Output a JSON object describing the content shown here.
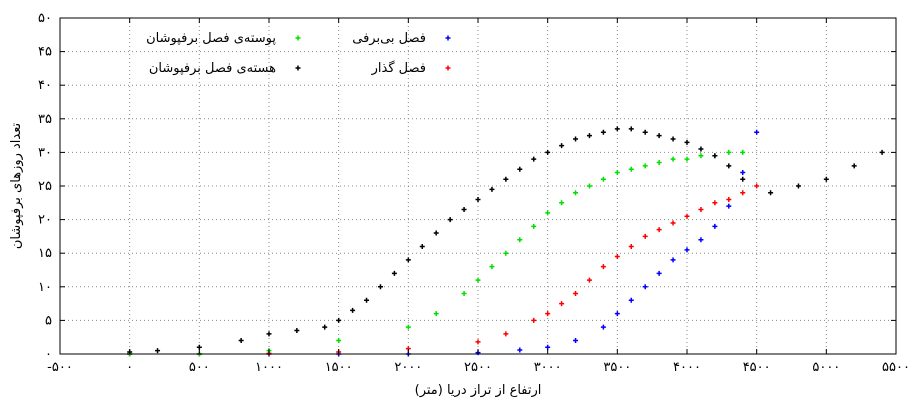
{
  "chart_data": {
    "type": "scatter",
    "title": "",
    "xlabel": "ارتفاع از تراز دریا (متر)",
    "ylabel": "تعداد روزهای برفپوشان",
    "xlim": [
      -500,
      5500
    ],
    "ylim": [
      0,
      50
    ],
    "x_ticks": [
      {
        "value": -500,
        "label": "-۵۰۰"
      },
      {
        "value": 0,
        "label": "۰"
      },
      {
        "value": 500,
        "label": "۵۰۰"
      },
      {
        "value": 1000,
        "label": "۱۰۰۰"
      },
      {
        "value": 1500,
        "label": "۱۵۰۰"
      },
      {
        "value": 2000,
        "label": "۲۰۰۰"
      },
      {
        "value": 2500,
        "label": "۲۵۰۰"
      },
      {
        "value": 3000,
        "label": "۳۰۰۰"
      },
      {
        "value": 3500,
        "label": "۳۵۰۰"
      },
      {
        "value": 4000,
        "label": "۴۰۰۰"
      },
      {
        "value": 4500,
        "label": "۴۵۰۰"
      },
      {
        "value": 5000,
        "label": "۵۰۰۰"
      },
      {
        "value": 5500,
        "label": "۵۵۰۰"
      }
    ],
    "y_ticks": [
      {
        "value": 0,
        "label": "۰"
      },
      {
        "value": 5,
        "label": "۵"
      },
      {
        "value": 10,
        "label": "۱۰"
      },
      {
        "value": 15,
        "label": "۱۵"
      },
      {
        "value": 20,
        "label": "۲۰"
      },
      {
        "value": 25,
        "label": "۲۵"
      },
      {
        "value": 30,
        "label": "۳۰"
      },
      {
        "value": 35,
        "label": "۳۵"
      },
      {
        "value": 40,
        "label": "۴۰"
      },
      {
        "value": 45,
        "label": "۴۵"
      },
      {
        "value": 50,
        "label": "۵۰"
      }
    ],
    "grid": true,
    "legend_position": "top-left",
    "series": [
      {
        "name": "فصل بی‌برفی",
        "color": "#0000ff",
        "x": [
          0,
          500,
          1000,
          1500,
          2000,
          2500,
          2800,
          3000,
          3200,
          3400,
          3500,
          3600,
          3700,
          3800,
          3900,
          4000,
          4100,
          4200,
          4300,
          4400,
          4500
        ],
        "y": [
          0,
          0,
          0,
          0,
          0,
          0.2,
          0.6,
          1,
          2,
          4,
          6,
          8,
          10,
          12,
          14,
          15.5,
          17,
          19,
          22,
          27,
          33
        ]
      },
      {
        "name": "فصل گذار",
        "color": "#ff0000",
        "x": [
          0,
          500,
          1000,
          1500,
          2000,
          2500,
          2700,
          2900,
          3000,
          3100,
          3200,
          3300,
          3400,
          3500,
          3600,
          3700,
          3800,
          3900,
          4000,
          4100,
          4200,
          4300,
          4400,
          4500
        ],
        "y": [
          0,
          0,
          0.1,
          0.3,
          0.8,
          1.8,
          3,
          5,
          6,
          7.5,
          9,
          11,
          13,
          14.5,
          16,
          17.5,
          18.5,
          19.5,
          20.5,
          21.5,
          22.5,
          23,
          24,
          25
        ]
      },
      {
        "name": "پوسته‌ی فصل برفپوشان",
        "color": "#00e000",
        "x": [
          0,
          500,
          1000,
          1500,
          2000,
          2200,
          2400,
          2500,
          2600,
          2700,
          2800,
          2900,
          3000,
          3100,
          3200,
          3300,
          3400,
          3500,
          3600,
          3700,
          3800,
          3900,
          4000,
          4100,
          4200,
          4300,
          4400
        ],
        "y": [
          0,
          0,
          0.5,
          2,
          4,
          6,
          9,
          11,
          13,
          15,
          17,
          19,
          21,
          22.5,
          24,
          25,
          26,
          27,
          27.5,
          28,
          28.5,
          29,
          29,
          29.5,
          29.5,
          30,
          30
        ]
      },
      {
        "name": "هسته‌ی فصل برفپوشان",
        "color": "#000000",
        "x": [
          0,
          200,
          500,
          800,
          1000,
          1200,
          1400,
          1500,
          1600,
          1700,
          1800,
          1900,
          2000,
          2100,
          2200,
          2300,
          2400,
          2500,
          2600,
          2700,
          2800,
          2900,
          3000,
          3100,
          3200,
          3300,
          3400,
          3500,
          3600,
          3700,
          3800,
          3900,
          4000,
          4100,
          4200,
          4300,
          4400,
          4600,
          4800,
          5000,
          5200,
          5400
        ],
        "y": [
          0.3,
          0.5,
          1,
          2,
          3,
          3.5,
          4,
          5,
          6.5,
          8,
          10,
          12,
          14,
          16,
          18,
          20,
          21.5,
          23,
          24.5,
          26,
          27.5,
          29,
          30,
          31,
          32,
          32.5,
          33,
          33.5,
          33.5,
          33,
          32.5,
          32,
          31.5,
          30.5,
          29.5,
          28,
          26,
          24,
          25,
          26,
          28,
          30
        ]
      }
    ]
  }
}
